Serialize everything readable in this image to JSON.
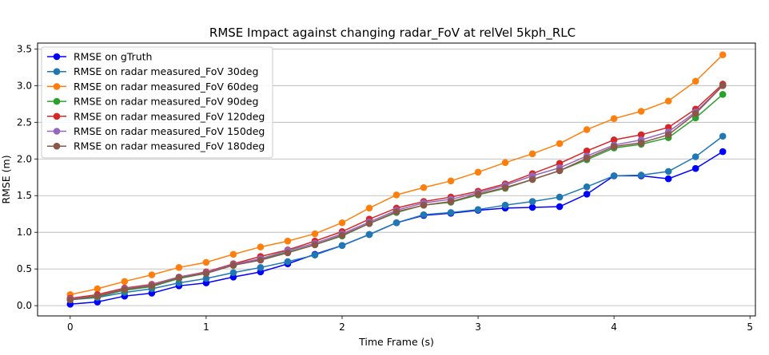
{
  "chart_data": {
    "type": "line",
    "title": "RMSE Impact against changing radar_FoV at relVel 5kph_RLC",
    "xlabel": "Time Frame (s)",
    "ylabel": "RMSE (m)",
    "xlim": [
      -0.24,
      5.04
    ],
    "ylim": [
      -0.14,
      3.58
    ],
    "xticks": [
      0,
      1,
      2,
      3,
      4,
      5
    ],
    "xtick_labels": [
      "0",
      "1",
      "2",
      "3",
      "4",
      "5"
    ],
    "yticks": [
      0.0,
      0.5,
      1.0,
      1.5,
      2.0,
      2.5,
      3.0,
      3.5
    ],
    "ytick_labels": [
      "0.0",
      "0.5",
      "1.0",
      "1.5",
      "2.0",
      "2.5",
      "3.0",
      "3.5"
    ],
    "grid": "y",
    "legend_position": "top-left",
    "x": [
      0,
      0.2,
      0.4,
      0.6,
      0.8,
      1.0,
      1.2,
      1.4,
      1.6,
      1.8,
      2.0,
      2.2,
      2.4,
      2.6,
      2.8,
      3.0,
      3.2,
      3.4,
      3.6,
      3.8,
      4.0,
      4.2,
      4.4,
      4.6,
      4.8
    ],
    "series": [
      {
        "name": "RMSE on gTruth",
        "color": "#0000ff",
        "values": [
          0.02,
          0.05,
          0.13,
          0.17,
          0.27,
          0.31,
          0.39,
          0.46,
          0.57,
          0.7,
          0.82,
          0.97,
          1.13,
          1.23,
          1.26,
          1.3,
          1.33,
          1.34,
          1.35,
          1.52,
          1.77,
          1.77,
          1.73,
          1.87,
          2.1
        ]
      },
      {
        "name": "RMSE on radar measured_FoV 30deg",
        "color": "#1f77b4",
        "values": [
          0.08,
          0.11,
          0.18,
          0.23,
          0.31,
          0.37,
          0.45,
          0.52,
          0.6,
          0.69,
          0.82,
          0.97,
          1.13,
          1.24,
          1.27,
          1.31,
          1.37,
          1.42,
          1.48,
          1.62,
          1.77,
          1.78,
          1.83,
          2.03,
          2.31
        ]
      },
      {
        "name": "RMSE on radar measured_FoV 60deg",
        "color": "#ff7f0e",
        "values": [
          0.15,
          0.23,
          0.33,
          0.42,
          0.52,
          0.59,
          0.7,
          0.8,
          0.88,
          0.98,
          1.13,
          1.33,
          1.51,
          1.61,
          1.7,
          1.82,
          1.95,
          2.07,
          2.21,
          2.4,
          2.55,
          2.65,
          2.79,
          3.06,
          3.42
        ]
      },
      {
        "name": "RMSE on radar measured_FoV 90deg",
        "color": "#2ca02c",
        "values": [
          0.08,
          0.12,
          0.21,
          0.26,
          0.37,
          0.44,
          0.55,
          0.63,
          0.73,
          0.83,
          0.95,
          1.12,
          1.27,
          1.37,
          1.41,
          1.51,
          1.6,
          1.72,
          1.84,
          1.99,
          2.15,
          2.2,
          2.29,
          2.56,
          2.88
        ]
      },
      {
        "name": "RMSE on radar measured_FoV 120deg",
        "color": "#d62728",
        "values": [
          0.1,
          0.15,
          0.24,
          0.29,
          0.39,
          0.46,
          0.57,
          0.67,
          0.76,
          0.88,
          1.01,
          1.18,
          1.33,
          1.42,
          1.48,
          1.56,
          1.66,
          1.8,
          1.94,
          2.11,
          2.26,
          2.33,
          2.43,
          2.68,
          3.02
        ]
      },
      {
        "name": "RMSE on radar measured_FoV 150deg",
        "color": "#9467bd",
        "values": [
          0.09,
          0.13,
          0.23,
          0.28,
          0.39,
          0.45,
          0.56,
          0.64,
          0.75,
          0.85,
          0.98,
          1.14,
          1.3,
          1.4,
          1.45,
          1.54,
          1.64,
          1.77,
          1.88,
          2.04,
          2.19,
          2.26,
          2.37,
          2.64,
          3.0
        ]
      },
      {
        "name": "RMSE on radar measured_FoV 180deg",
        "color": "#8c564b",
        "values": [
          0.08,
          0.13,
          0.22,
          0.27,
          0.38,
          0.44,
          0.55,
          0.62,
          0.72,
          0.83,
          0.96,
          1.12,
          1.28,
          1.37,
          1.42,
          1.52,
          1.61,
          1.72,
          1.84,
          2.01,
          2.17,
          2.22,
          2.33,
          2.62,
          3.0
        ]
      }
    ]
  }
}
